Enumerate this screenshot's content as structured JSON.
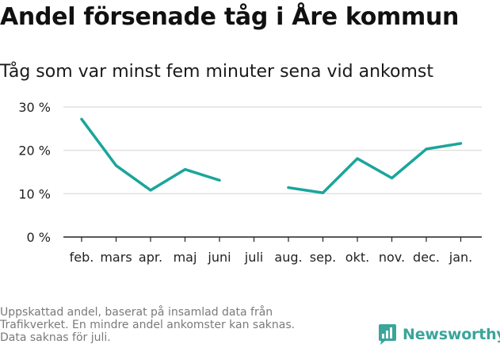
{
  "title": "Andel försenade tåg i Åre kommun",
  "subtitle": "Tåg som var minst fem minuter sena vid ankomst",
  "footnote": [
    "Uppskattad andel, baserat på insamlad data från",
    "Trafikverket. En mindre andel ankomster kan saknas.",
    "Data saknas för juli."
  ],
  "brand": {
    "name": "Newsworthy",
    "icon": "newsworthy-logo-icon"
  },
  "colors": {
    "line": "#1aa59b",
    "grid": "#d9d9d9",
    "axis": "#222222",
    "logo": "#3aa59b"
  },
  "chart_data": {
    "type": "line",
    "categories": [
      "feb.",
      "mars",
      "apr.",
      "maj",
      "juni",
      "juli",
      "aug.",
      "sep.",
      "okt.",
      "nov.",
      "dec.",
      "jan."
    ],
    "series": [
      {
        "values": [
          27.2,
          16.5,
          10.8,
          15.6,
          13.1,
          null,
          11.4,
          10.2,
          18.1,
          13.6,
          20.3,
          21.6
        ]
      }
    ],
    "ylim": [
      0,
      30
    ],
    "yticks": [
      0,
      10,
      20,
      30
    ],
    "ytick_labels": [
      "0 %",
      "10 %",
      "20 %",
      "30 %"
    ],
    "grid": true,
    "legend": "none"
  }
}
